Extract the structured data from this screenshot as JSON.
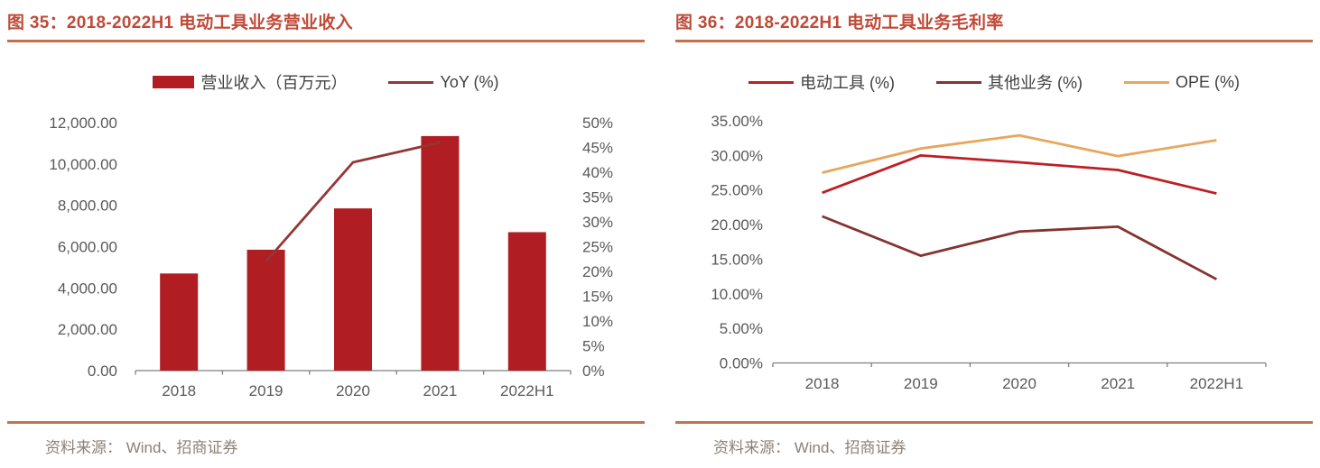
{
  "colors": {
    "title_text": "#C04A38",
    "title_rule": "#C2714E",
    "bottom_rule": "#C2734F",
    "source_text": "#8C8178",
    "axis_text": "#595959",
    "axis_line": "#7F7F7F",
    "legend_text": "#404040"
  },
  "figures": [
    {
      "title": "图 35：2018-2022H1 电动工具业务营业收入",
      "source": "资料来源： Wind、招商证券"
    },
    {
      "title": "图 36：2018-2022H1 电动工具业务毛利率",
      "source": "资料来源： Wind、招商证券"
    }
  ],
  "chart_data": [
    {
      "type": "bar",
      "title": "图 35：2018-2022H1 电动工具业务营业收入",
      "categories": [
        "2018",
        "2019",
        "2020",
        "2021",
        "2022H1"
      ],
      "series": [
        {
          "name": "营业收入（百万元）",
          "type": "bar",
          "axis": "left",
          "color": "#B01E23",
          "values": [
            4700,
            5850,
            7850,
            11350,
            6700
          ]
        },
        {
          "name": "YoY (%)",
          "type": "line",
          "axis": "right",
          "color": "#943634",
          "values": [
            null,
            22,
            42,
            46,
            null
          ]
        }
      ],
      "left_axis": {
        "label": "营业收入（百万元）",
        "min": 0,
        "max": 12000,
        "step": 2000,
        "tick_labels": [
          "0.00",
          "2,000.00",
          "4,000.00",
          "6,000.00",
          "8,000.00",
          "10,000.00",
          "12,000.00"
        ]
      },
      "right_axis": {
        "label": "YoY (%)",
        "min": 0,
        "max": 50,
        "step": 5,
        "tick_labels": [
          "0%",
          "5%",
          "10%",
          "15%",
          "20%",
          "25%",
          "30%",
          "35%",
          "40%",
          "45%",
          "50%"
        ]
      },
      "legend_position": "top",
      "grid": false
    },
    {
      "type": "line",
      "title": "图 36：2018-2022H1 电动工具业务毛利率",
      "categories": [
        "2018",
        "2019",
        "2020",
        "2021",
        "2022H1"
      ],
      "series": [
        {
          "name": "电动工具 (%)",
          "color": "#BE1E24",
          "values": [
            24.6,
            30.0,
            29.0,
            27.9,
            24.5
          ]
        },
        {
          "name": "其他业务 (%)",
          "color": "#84332F",
          "values": [
            21.2,
            15.5,
            19.0,
            19.7,
            12.1
          ]
        },
        {
          "name": "OPE (%)",
          "color": "#E8A65D",
          "values": [
            27.5,
            31.0,
            32.9,
            29.9,
            32.2
          ]
        }
      ],
      "y_axis": {
        "min": 0,
        "max": 35,
        "step": 5,
        "tick_labels": [
          "0.00%",
          "5.00%",
          "10.00%",
          "15.00%",
          "20.00%",
          "25.00%",
          "30.00%",
          "35.00%"
        ]
      },
      "legend_position": "top",
      "grid": false
    }
  ]
}
